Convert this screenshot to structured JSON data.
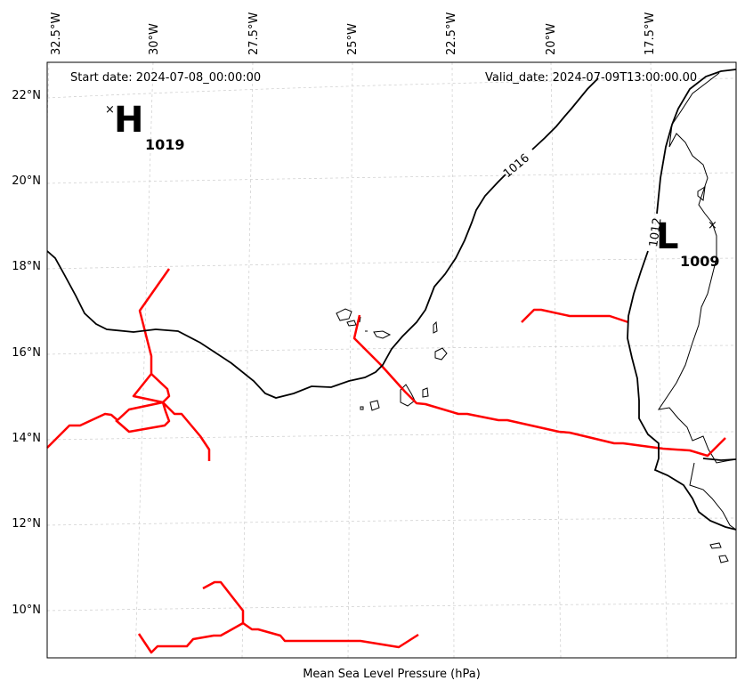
{
  "map": {
    "start_date_text": "Start date: 2024-07-08_00:00:00",
    "valid_date_text": "Valid_date: 2024-07-09T13:00:00.00",
    "bottom_label": "Mean Sea Level Pressure (hPa)",
    "longitude_labels": [
      "32.5°W",
      "30°W",
      "27.5°W",
      "25°W",
      "22.5°W",
      "20°W",
      "17.5°W"
    ],
    "latitude_labels": [
      "22°N",
      "20°N",
      "18°N",
      "16°N",
      "14°N",
      "12°N",
      "10°N"
    ],
    "high_pressure": {
      "letter": "H",
      "value": "1019"
    },
    "low_pressure": {
      "letter": "L",
      "value": "1009"
    },
    "isobar_labels": [
      "1016",
      "1012"
    ],
    "colors": {
      "isobar": "#000000",
      "front_lines": "#ff0000",
      "grid": "#cccccc",
      "coastline": "#000000"
    }
  }
}
